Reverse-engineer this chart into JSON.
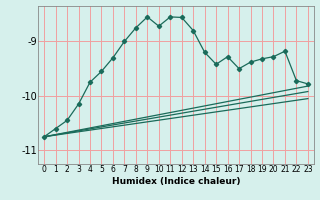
{
  "xlabel": "Humidex (Indice chaleur)",
  "bg_color": "#d6f0ec",
  "grid_color": "#f0a0a0",
  "line_color": "#1a6b5a",
  "xlim": [
    -0.5,
    23.5
  ],
  "ylim": [
    -11.25,
    -8.35
  ],
  "yticks": [
    -11,
    -10,
    -9
  ],
  "xticks": [
    0,
    1,
    2,
    3,
    4,
    5,
    6,
    7,
    8,
    9,
    10,
    11,
    12,
    13,
    14,
    15,
    16,
    17,
    18,
    19,
    20,
    21,
    22,
    23
  ],
  "y_main": [
    -10.75,
    -10.6,
    -10.45,
    -10.15,
    -9.75,
    -9.55,
    -9.3,
    -9.0,
    -8.75,
    -8.55,
    -8.72,
    -8.55,
    -8.56,
    -8.8,
    -9.2,
    -9.42,
    -9.28,
    -9.5,
    -9.38,
    -9.32,
    -9.28,
    -9.18,
    -9.72,
    -9.78
  ],
  "line1_y": [
    -10.75,
    -9.82
  ],
  "line2_y": [
    -10.75,
    -9.92
  ],
  "line3_y": [
    -10.75,
    -10.05
  ]
}
